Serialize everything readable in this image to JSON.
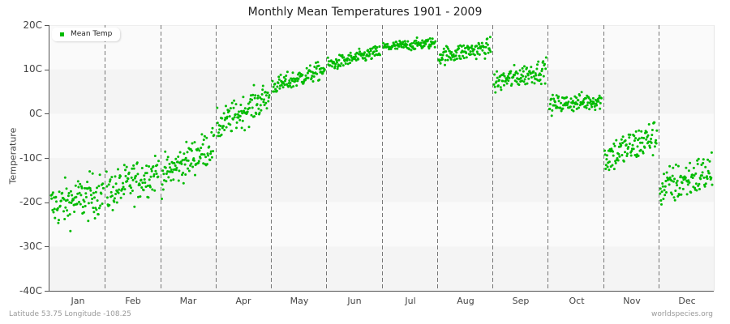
{
  "chart_data": {
    "type": "scatter",
    "title": "Monthly Mean Temperatures 1901 - 2009",
    "xlabel": "",
    "ylabel": "Temperature",
    "ylim": [
      -40,
      20
    ],
    "yticks": [
      "20C",
      "10C",
      "0C",
      "-10C",
      "-20C",
      "-30C",
      "-40C"
    ],
    "categories": [
      "Jan",
      "Feb",
      "Mar",
      "Apr",
      "May",
      "Jun",
      "Jul",
      "Aug",
      "Sep",
      "Oct",
      "Nov",
      "Dec"
    ],
    "grid": "alternating horizontal bands; dashed vertical month separators",
    "legend": {
      "position": "top-left",
      "entries": [
        "Mean Temp"
      ]
    },
    "series": [
      {
        "name": "Mean Temp",
        "color": "#00bb00",
        "points_per_month": 109,
        "monthly_mean": [
          -20,
          -16,
          -11,
          1,
          9,
          13,
          16,
          15,
          9,
          3,
          -7,
          -15
        ],
        "monthly_start_end": [
          [
            -21,
            -18
          ],
          [
            -18,
            -13
          ],
          [
            -14,
            -7
          ],
          [
            -3,
            4
          ],
          [
            6,
            10
          ],
          [
            11,
            14
          ],
          [
            15,
            16
          ],
          [
            13,
            15
          ],
          [
            7,
            10
          ],
          [
            2,
            3
          ],
          [
            -10,
            -5
          ],
          [
            -17,
            -13
          ]
        ],
        "monthly_spread": [
          5,
          4.5,
          4,
          3.5,
          2,
          1.5,
          1.2,
          2,
          2.5,
          2,
          4,
          4.5
        ],
        "monthly_min": [
          -33,
          -26,
          -23,
          -6,
          5,
          10,
          14,
          11,
          4,
          -3,
          -17,
          -26
        ],
        "monthly_max": [
          -10,
          -5,
          -2,
          8,
          13,
          16,
          18.5,
          18,
          14,
          7,
          -2,
          -7
        ]
      }
    ]
  },
  "footer": {
    "left": "Latitude 53.75 Longitude -108.25",
    "right": "worldspecies.org"
  }
}
